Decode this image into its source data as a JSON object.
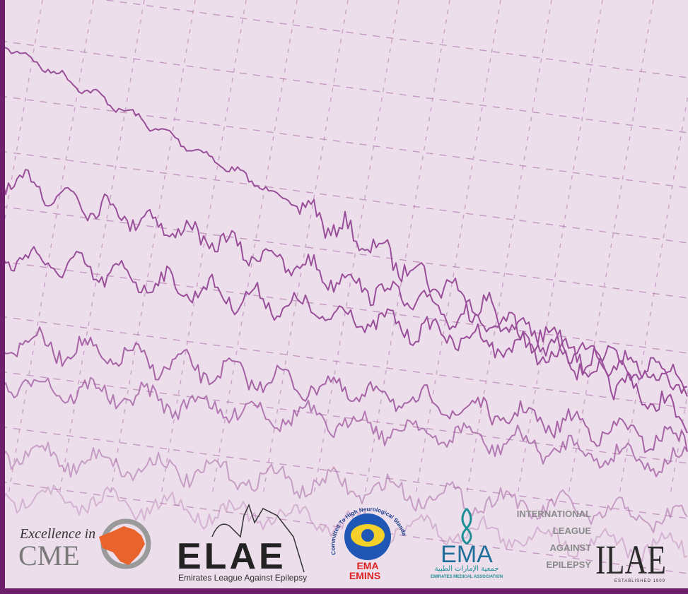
{
  "logos": {
    "cme": {
      "line1": "Excellence in",
      "line2": "CME"
    },
    "elae": {
      "name": "ELAE",
      "subtitle": "Emirates League Against Epilepsy"
    },
    "emins": {
      "motto": "Committed To High Neurological Standards",
      "line1": "EMA",
      "line2": "EMINS"
    },
    "ema": {
      "name": "EMA",
      "arabic": "جمعية الإمارات الطبية",
      "subtitle": "EMIRATES MEDICAL ASSOCIATION"
    },
    "ilae": {
      "words": [
        "INTERNATIONAL",
        "LEAGUE",
        "AGAINST",
        "EPILEPSY"
      ],
      "mark": "ILAE",
      "established": "ESTABLISHED 1909"
    }
  }
}
